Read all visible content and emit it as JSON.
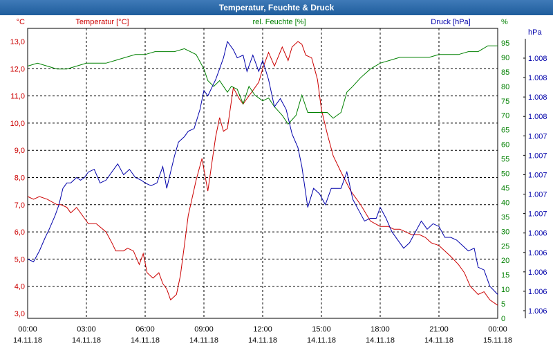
{
  "window": {
    "title": "Temperatur, Feuchte & Druck"
  },
  "chart_data": {
    "type": "line",
    "title": "Temperatur, Feuchte & Druck",
    "x_labels": [
      {
        "time": "00:00",
        "date": "14.11.18",
        "h": 0
      },
      {
        "time": "03:00",
        "date": "14.11.18",
        "h": 3
      },
      {
        "time": "06:00",
        "date": "14.11.18",
        "h": 6
      },
      {
        "time": "09:00",
        "date": "14.11.18",
        "h": 9
      },
      {
        "time": "12:00",
        "date": "14.11.18",
        "h": 12
      },
      {
        "time": "15:00",
        "date": "14.11.18",
        "h": 15
      },
      {
        "time": "18:00",
        "date": "14.11.18",
        "h": 18
      },
      {
        "time": "21:00",
        "date": "14.11.18",
        "h": 21
      },
      {
        "time": "00:00",
        "date": "15.11.18",
        "h": 24
      }
    ],
    "xlim": [
      0,
      24
    ],
    "temp_axis": {
      "unit": "°C",
      "label": "Temperatur [°C]",
      "color": "#cc0000",
      "ylim": [
        3.0,
        13.0
      ],
      "ticks": [
        "3,0",
        "4,0",
        "5,0",
        "6,0",
        "7,0",
        "8,0",
        "9,0",
        "10,0",
        "11,0",
        "12,0",
        "13,0"
      ]
    },
    "hum_axis": {
      "unit": "%",
      "label": "rel. Feuchte [%]",
      "color": "#008000",
      "ylim": [
        0,
        95
      ],
      "ticks": [
        "0",
        "5",
        "10",
        "15",
        "20",
        "25",
        "30",
        "35",
        "40",
        "45",
        "50",
        "55",
        "60",
        "65",
        "70",
        "75",
        "80",
        "85",
        "90",
        "95"
      ]
    },
    "press_axis": {
      "unit": "hPa",
      "label": "Druck [hPa]",
      "color": "#0000aa",
      "ticks": [
        "1.006",
        "1.006",
        "1.006",
        "1.006",
        "1.006",
        "1.007",
        "1.007",
        "1.007",
        "1.007",
        "1.007",
        "1.008",
        "1.008",
        "1.008",
        "1.008"
      ]
    },
    "series": [
      {
        "name": "Temperatur [°C]",
        "color": "#cc0000",
        "axis": "temp",
        "x": [
          0,
          0.3,
          0.6,
          1.0,
          1.5,
          1.7,
          2.0,
          2.2,
          2.5,
          2.8,
          3.1,
          3.5,
          4.0,
          4.3,
          4.5,
          4.9,
          5.1,
          5.4,
          5.7,
          5.9,
          6.1,
          6.4,
          6.7,
          6.9,
          7.1,
          7.3,
          7.6,
          7.8,
          8.0,
          8.2,
          8.6,
          8.9,
          9.0,
          9.2,
          9.4,
          9.6,
          9.8,
          10.0,
          10.2,
          10.5,
          10.8,
          11.0,
          11.2,
          11.4,
          11.8,
          12.0,
          12.3,
          12.6,
          13.0,
          13.3,
          13.5,
          13.8,
          14.0,
          14.2,
          14.5,
          14.8,
          15.0,
          15.3,
          15.6,
          16.0,
          16.5,
          17.0,
          17.5,
          18.0,
          18.4,
          18.7,
          19.0,
          19.3,
          19.6,
          20.0,
          20.3,
          20.6,
          21.0,
          21.3,
          21.6,
          22.0,
          22.3,
          22.6,
          23.0,
          23.3,
          23.6,
          24.0
        ],
        "y": [
          7.3,
          7.2,
          7.3,
          7.2,
          7.0,
          7.0,
          6.9,
          6.7,
          6.9,
          6.6,
          6.3,
          6.3,
          6.0,
          5.6,
          5.3,
          5.3,
          5.4,
          5.3,
          4.8,
          5.2,
          4.5,
          4.3,
          4.5,
          4.1,
          3.9,
          3.5,
          3.7,
          4.4,
          5.5,
          6.6,
          7.9,
          8.7,
          8.3,
          7.5,
          8.5,
          9.5,
          10.2,
          9.7,
          9.8,
          11.3,
          10.9,
          10.7,
          10.9,
          11.1,
          11.5,
          12.0,
          12.6,
          12.1,
          12.8,
          12.3,
          12.8,
          13.0,
          12.9,
          12.5,
          12.4,
          11.6,
          10.5,
          9.6,
          8.8,
          8.2,
          7.5,
          7.0,
          6.4,
          6.2,
          6.2,
          6.1,
          6.1,
          6.0,
          5.9,
          5.9,
          5.8,
          5.6,
          5.5,
          5.3,
          5.1,
          4.8,
          4.5,
          4.0,
          3.7,
          3.8,
          3.5,
          3.3
        ]
      },
      {
        "name": "rel. Feuchte [%]",
        "color": "#008000",
        "axis": "hum",
        "x": [
          0,
          0.5,
          1.0,
          1.5,
          2.0,
          2.5,
          3.0,
          3.5,
          4.0,
          4.5,
          5.0,
          5.5,
          6.0,
          6.5,
          7.0,
          7.5,
          8.0,
          8.3,
          8.6,
          9.0,
          9.2,
          9.5,
          9.8,
          10.0,
          10.2,
          10.4,
          10.7,
          11.0,
          11.3,
          11.6,
          12.0,
          12.3,
          12.6,
          13.0,
          13.3,
          13.7,
          14.0,
          14.3,
          14.6,
          15.0,
          15.3,
          15.6,
          16.0,
          16.3,
          16.6,
          17.0,
          17.5,
          18.0,
          18.5,
          19.0,
          19.5,
          20.0,
          20.5,
          21.0,
          21.5,
          22.0,
          22.5,
          23.0,
          23.5,
          24.0
        ],
        "y": [
          87,
          88,
          87,
          86,
          86,
          87,
          88,
          88,
          88,
          89,
          90,
          91,
          91,
          92,
          92,
          92,
          93,
          92,
          91,
          86,
          82,
          80,
          82,
          80,
          78,
          80,
          79,
          74,
          80,
          77,
          75,
          76,
          73,
          70,
          67,
          70,
          77,
          71,
          71,
          71,
          71,
          69,
          71,
          78,
          80,
          83,
          86,
          88,
          89,
          90,
          90,
          90,
          90,
          91,
          91,
          91,
          92,
          92,
          94,
          94
        ]
      },
      {
        "name": "Druck [hPa]",
        "color": "#0000aa",
        "axis": "temp",
        "x": [
          0,
          0.3,
          0.6,
          0.9,
          1.1,
          1.4,
          1.6,
          1.8,
          2.0,
          2.2,
          2.5,
          2.7,
          2.9,
          3.1,
          3.4,
          3.7,
          4.0,
          4.3,
          4.6,
          4.9,
          5.2,
          5.5,
          5.8,
          6.0,
          6.3,
          6.6,
          6.9,
          7.1,
          7.3,
          7.5,
          7.7,
          8.0,
          8.2,
          8.5,
          8.8,
          9.0,
          9.2,
          9.4,
          9.6,
          9.8,
          10.0,
          10.2,
          10.5,
          10.7,
          11.0,
          11.2,
          11.5,
          11.8,
          12.0,
          12.3,
          12.6,
          12.9,
          13.2,
          13.5,
          13.8,
          14.0,
          14.3,
          14.6,
          14.9,
          15.2,
          15.5,
          15.8,
          16.0,
          16.3,
          16.6,
          16.9,
          17.2,
          17.5,
          17.8,
          18.0,
          18.3,
          18.6,
          18.9,
          19.2,
          19.5,
          19.8,
          20.1,
          20.4,
          20.7,
          21.0,
          21.3,
          21.6,
          21.9,
          22.2,
          22.5,
          22.8,
          23.0,
          23.3,
          23.6,
          24.0
        ],
        "y": [
          5.0,
          4.9,
          5.3,
          5.8,
          6.1,
          6.6,
          7.0,
          7.6,
          7.8,
          7.8,
          8.0,
          7.9,
          8.0,
          8.2,
          8.3,
          7.8,
          7.9,
          8.2,
          8.5,
          8.1,
          8.3,
          8.0,
          7.9,
          7.8,
          7.7,
          7.8,
          8.4,
          7.6,
          8.2,
          8.8,
          9.3,
          9.5,
          9.7,
          9.8,
          10.5,
          11.2,
          11.0,
          11.3,
          11.6,
          12.0,
          12.4,
          13.0,
          12.7,
          12.4,
          12.5,
          11.9,
          12.5,
          11.9,
          12.3,
          11.6,
          10.6,
          10.9,
          10.5,
          9.6,
          9.1,
          8.4,
          6.9,
          7.6,
          7.4,
          7.0,
          7.6,
          7.6,
          7.6,
          8.2,
          7.2,
          6.8,
          6.4,
          6.5,
          6.5,
          6.9,
          6.5,
          6.0,
          5.7,
          5.4,
          5.6,
          6.0,
          6.4,
          6.1,
          6.3,
          6.2,
          5.8,
          5.8,
          5.7,
          5.5,
          5.3,
          5.4,
          4.7,
          4.6,
          4.0,
          3.7
        ]
      }
    ]
  }
}
